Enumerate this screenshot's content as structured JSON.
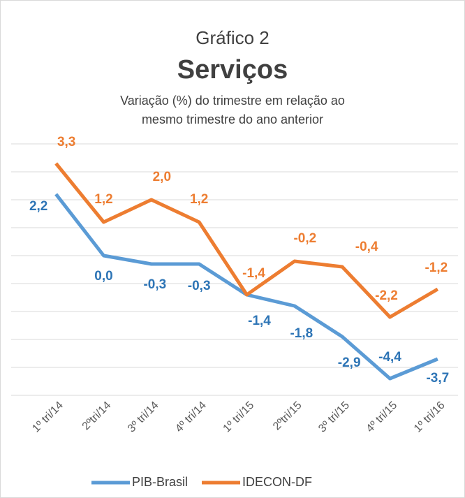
{
  "chart_data": {
    "type": "line",
    "title": "Gráfico 2",
    "subtitle": "Serviços",
    "description": "Variação (%) do trimestre em relação ao mesmo trimestre do ano anterior",
    "categories": [
      "1º tri/14",
      "2ºtri/14",
      "3º tri/14",
      "4º tri/14",
      "1º tri/15",
      "2ºtri/15",
      "3º tri/15",
      "4º tri/15",
      "1º tri/16"
    ],
    "series": [
      {
        "name": "PIB-Brasil",
        "color": "#5b9bd5",
        "label_color": "#2e75b6",
        "values": [
          2.2,
          0.0,
          -0.3,
          -0.3,
          -1.4,
          -1.8,
          -2.9,
          -4.4,
          -3.7
        ],
        "value_labels": [
          "2,2",
          "0,0",
          "-0,3",
          "-0,3",
          "-1,4",
          "-1,8",
          "-2,9",
          "-4,4",
          "-3,7"
        ]
      },
      {
        "name": "IDECON-DF",
        "color": "#ed7d31",
        "label_color": "#ed7d31",
        "values": [
          3.3,
          1.2,
          2.0,
          1.2,
          -1.4,
          -0.2,
          -0.4,
          -2.2,
          -1.2
        ],
        "value_labels": [
          "3,3",
          "1,2",
          "2,0",
          "1,2",
          "-1,4",
          "-0,2",
          "-0,4",
          "-2,2",
          "-1,2"
        ]
      }
    ],
    "ylim": [
      -5,
      4
    ],
    "yticks": [
      -5,
      -4,
      -3,
      -2,
      -1,
      0,
      1,
      2,
      3,
      4
    ],
    "grid": true,
    "legend": "bottom"
  }
}
